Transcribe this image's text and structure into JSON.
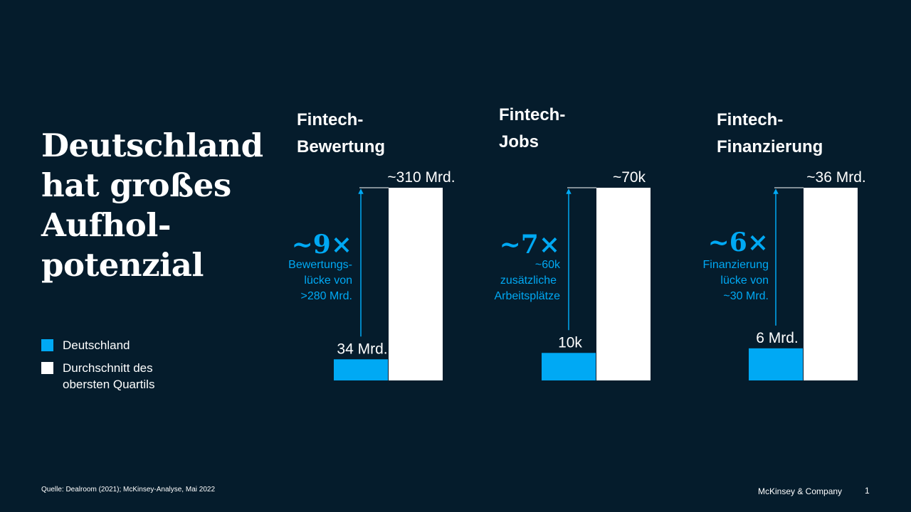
{
  "slide": {
    "headline": "Deutschland\nhat großes\nAufhol-\npotenzial",
    "page_number": "1",
    "source": "Quelle: Dealroom (2021); McKinsey-Analyse, Mai 2022",
    "brand": "McKinsey & Company"
  },
  "legend": [
    {
      "label": "Deutschland",
      "color": "#00a9f4"
    },
    {
      "label": "Durchschnitt des\nobersten Quartils",
      "color": "#ffffff"
    }
  ],
  "colors": {
    "background": "#051c2c",
    "germany": "#00a9f4",
    "top_quartile": "#ffffff",
    "accent": "#00a9f4"
  },
  "chart_data": [
    {
      "type": "bar",
      "title": "Fintech-\nBewertung",
      "categories": [
        "Deutschland",
        "Durchschnitt des obersten Quartils"
      ],
      "values": [
        34,
        310
      ],
      "value_labels": [
        "34 Mrd.",
        "~310 Mrd."
      ],
      "unit": "Mrd.",
      "multiplier": "~9×",
      "gap_note": [
        "Bewertungs-",
        "lücke von",
        ">280 Mrd."
      ]
    },
    {
      "type": "bar",
      "title": "Fintech-\nJobs",
      "categories": [
        "Deutschland",
        "Durchschnitt des obersten Quartils"
      ],
      "values": [
        10,
        70
      ],
      "value_labels": [
        "10k",
        "~70k"
      ],
      "unit": "k",
      "multiplier": "~7×",
      "gap_note": [
        "~60k",
        "zusätzliche",
        "Arbeitsplätze"
      ]
    },
    {
      "type": "bar",
      "title": "Fintech-\nFinanzierung",
      "categories": [
        "Deutschland",
        "Durchschnitt des obersten Quartils"
      ],
      "values": [
        6,
        36
      ],
      "value_labels": [
        "6 Mrd.",
        "~36 Mrd."
      ],
      "unit": "Mrd.",
      "multiplier": "~6×",
      "gap_note": [
        "Finanzierung",
        "lücke von",
        "~30 Mrd."
      ]
    }
  ]
}
